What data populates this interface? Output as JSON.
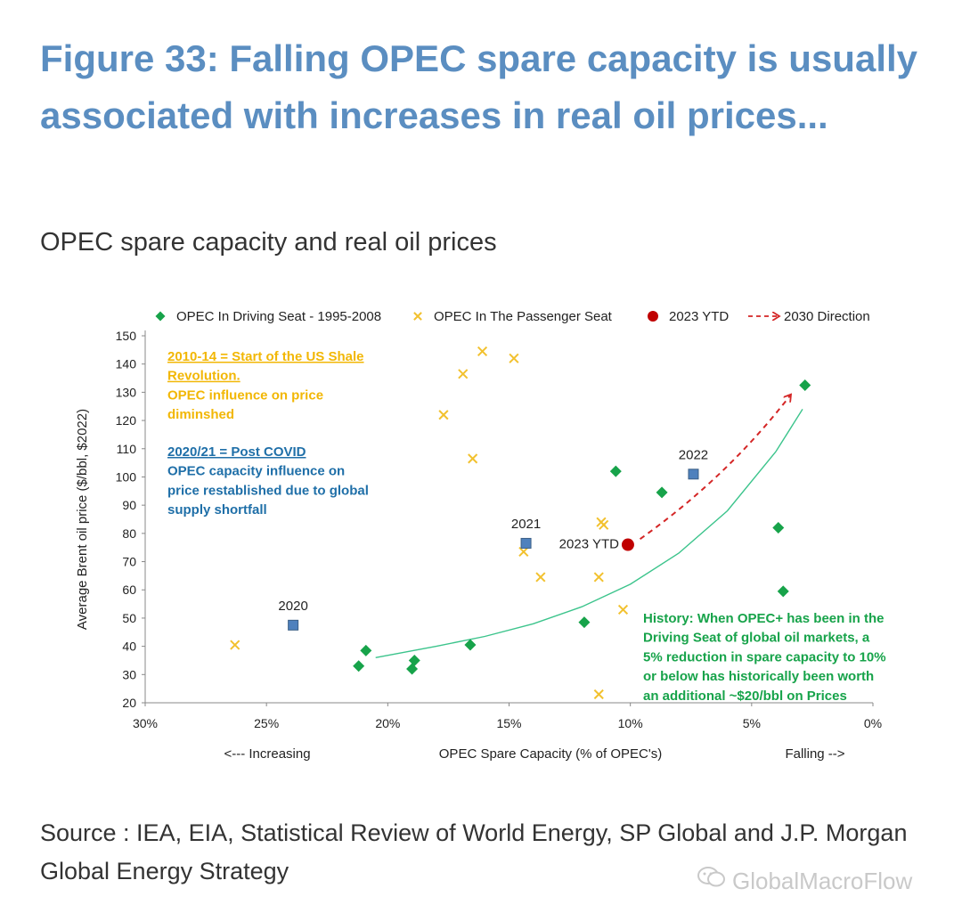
{
  "header": {
    "title": "Figure 33: Falling OPEC spare capacity is usually associated with increases in real oil prices...",
    "subtitle": "OPEC spare capacity and real oil prices"
  },
  "source": "Source : IEA, EIA, Statistical Review of World Energy, SP Global and J.P. Morgan Global Energy Strategy",
  "watermark": {
    "text": "GlobalMacroFlow",
    "icon": "wechat-icon"
  },
  "chart_data": {
    "type": "scatter",
    "x_reversed": true,
    "xlim": [
      30,
      0
    ],
    "ylim": [
      20,
      150
    ],
    "x_ticks": [
      30,
      25,
      20,
      15,
      10,
      5,
      0
    ],
    "x_tick_labels": [
      "30%",
      "25%",
      "20%",
      "15%",
      "10%",
      "5%",
      "0%"
    ],
    "y_ticks": [
      20,
      30,
      40,
      50,
      60,
      70,
      80,
      90,
      100,
      110,
      120,
      130,
      140,
      150
    ],
    "xlabel": "OPEC Spare Capacity (% of OPEC's)",
    "ylabel": "Average Brent oil price ($/bbl, $2022)",
    "x_left_note": "<--- Increasing",
    "x_right_note": "Falling -->",
    "grid": false,
    "legend_position": "top",
    "series": [
      {
        "name": "OPEC In Driving Seat - 1995-2008",
        "marker": "diamond",
        "color": "#17a34a",
        "points": [
          [
            21.2,
            33
          ],
          [
            20.9,
            38.5
          ],
          [
            19.0,
            32
          ],
          [
            18.9,
            35
          ],
          [
            16.6,
            40.5
          ],
          [
            11.9,
            48.5
          ],
          [
            10.6,
            102
          ],
          [
            8.7,
            94.5
          ],
          [
            3.9,
            82
          ],
          [
            3.7,
            59.5
          ],
          [
            2.8,
            132.5
          ]
        ]
      },
      {
        "name": "OPEC In The Passenger Seat",
        "marker": "x",
        "color": "#f2c12e",
        "points": [
          [
            26.3,
            40.5
          ],
          [
            17.7,
            122
          ],
          [
            16.9,
            136.5
          ],
          [
            16.5,
            106.5
          ],
          [
            16.1,
            144.5
          ],
          [
            14.8,
            142
          ],
          [
            14.4,
            73.5
          ],
          [
            13.7,
            64.5
          ],
          [
            11.3,
            64.5
          ],
          [
            11.3,
            23
          ],
          [
            11.2,
            84
          ],
          [
            11.1,
            83
          ],
          [
            10.3,
            53
          ]
        ]
      },
      {
        "name": "2023 YTD",
        "marker": "circle",
        "color": "#c00000",
        "points": [
          [
            10.1,
            76
          ]
        ]
      },
      {
        "name": "2030 Direction",
        "marker": "dashed-arrow",
        "color": "#d42626",
        "points": [
          [
            9.6,
            78
          ],
          [
            6.0,
            100
          ],
          [
            3.4,
            129
          ]
        ]
      }
    ],
    "highlight_points": [
      {
        "label": "2020",
        "x": 23.9,
        "y": 47.5,
        "marker": "square",
        "color": "#4f81bd"
      },
      {
        "label": "2021",
        "x": 14.3,
        "y": 76.5,
        "marker": "square",
        "color": "#4f81bd"
      },
      {
        "label": "2022",
        "x": 7.4,
        "y": 101,
        "marker": "square",
        "color": "#4f81bd"
      }
    ],
    "point_labels": [
      {
        "label": "2023 YTD",
        "x": 10.1,
        "y": 76
      }
    ],
    "trendline": {
      "color": "#3cc48c",
      "points": [
        [
          20.5,
          36
        ],
        [
          18,
          40
        ],
        [
          16,
          43.5
        ],
        [
          14,
          48
        ],
        [
          12,
          54
        ],
        [
          10,
          62
        ],
        [
          8,
          73
        ],
        [
          6,
          88
        ],
        [
          4,
          109
        ],
        [
          2.9,
          124
        ]
      ]
    },
    "annotations": [
      {
        "id": "shale",
        "color": "#f2b705",
        "lines": [
          {
            "text": "2010-14 = Start of the US Shale",
            "underline": true
          },
          {
            "text": "Revolution.",
            "underline": true
          },
          {
            "text": "OPEC influence on price",
            "underline": false
          },
          {
            "text": "diminshed",
            "underline": false
          }
        ]
      },
      {
        "id": "covid",
        "color": "#1f6fa8",
        "lines": [
          {
            "text": "2020/21 = Post COVID",
            "underline": true
          },
          {
            "text": "OPEC capacity influence on",
            "underline": false
          },
          {
            "text": "price restablished due to global",
            "underline": false
          },
          {
            "text": "supply shortfall",
            "underline": false
          }
        ]
      },
      {
        "id": "history",
        "color": "#17a34a",
        "lines": [
          {
            "text": "History: When OPEC+ has been in the",
            "underline": false
          },
          {
            "text": "Driving Seat of global oil markets, a",
            "underline": false
          },
          {
            "text": "5% reduction in spare capacity to 10%",
            "underline": false
          },
          {
            "text": "or below has historically been worth",
            "underline": false
          },
          {
            "text": "an additional ~$20/bbl on Prices",
            "underline": false
          }
        ]
      }
    ]
  }
}
